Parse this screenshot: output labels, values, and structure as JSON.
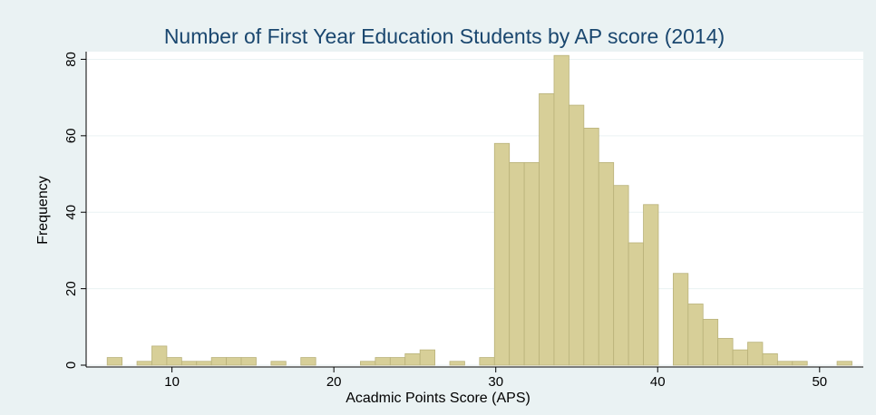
{
  "chart_data": {
    "type": "histogram",
    "title": "Number of First Year Education Students by AP score (2014)",
    "x_label": "Acadmic Points Score (APS)",
    "y_label": "Frequency",
    "bins": [
      6,
      6.92,
      7.84,
      8.76,
      9.68,
      10.6,
      11.52,
      12.44,
      13.36,
      14.28,
      15.2,
      16.12,
      17.04,
      17.96,
      18.88,
      19.8,
      20.72,
      21.64,
      22.56,
      23.48,
      24.4,
      25.32,
      26.24,
      27.16,
      28.08,
      29,
      29.92,
      30.84,
      31.76,
      32.68,
      33.6,
      34.52,
      35.44,
      36.36,
      37.28,
      38.2,
      39.12,
      40.04,
      40.96,
      41.88,
      42.8,
      43.72,
      44.64,
      45.56,
      46.48,
      47.4,
      48.32,
      49.24,
      50.16,
      51.08,
      52
    ],
    "values": [
      2,
      0,
      1,
      5,
      2,
      1,
      1,
      2,
      2,
      2,
      0,
      1,
      0,
      2,
      0,
      0,
      0,
      1,
      2,
      2,
      3,
      4,
      0,
      1,
      0,
      2,
      58,
      53,
      53,
      71,
      81,
      68,
      62,
      53,
      47,
      32,
      42,
      0,
      24,
      16,
      12,
      7,
      4,
      6,
      3,
      1,
      1,
      0,
      0,
      1
    ],
    "color": "#d7cf98",
    "xlim": [
      4.7,
      52.7
    ],
    "xticks": [
      10,
      20,
      30,
      40,
      50
    ],
    "ylim": [
      0,
      82
    ],
    "yticks": [
      0,
      20,
      40,
      60,
      80
    ],
    "grid": true
  }
}
